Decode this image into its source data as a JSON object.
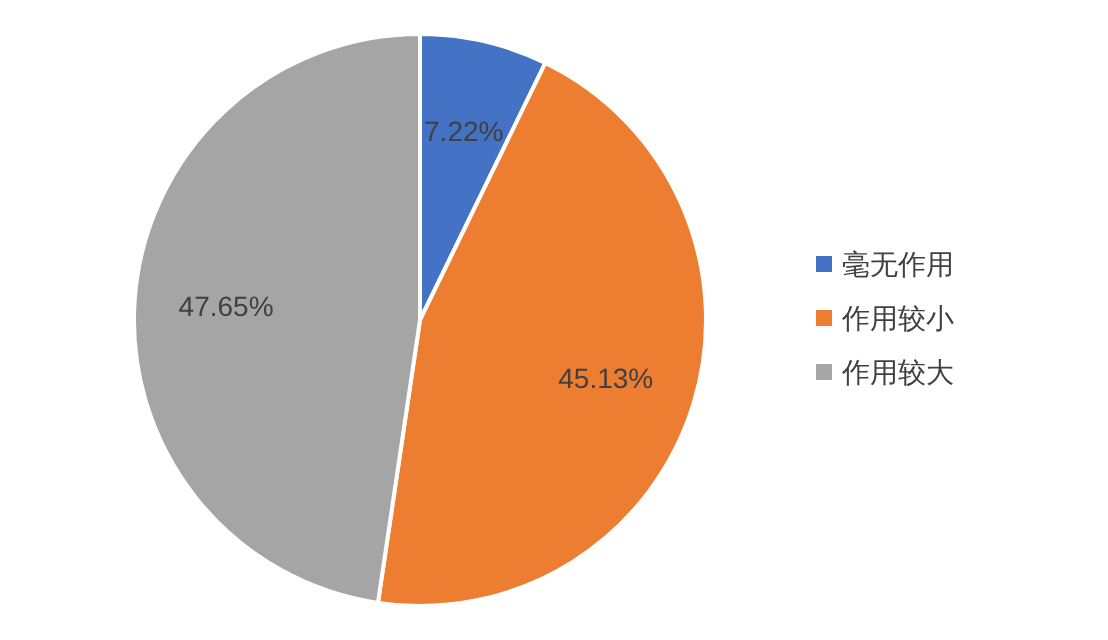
{
  "chart_data": {
    "type": "pie",
    "categories": [
      "毫无作用",
      "作用较小",
      "作用较大"
    ],
    "values": [
      7.22,
      45.13,
      47.65
    ],
    "colors": [
      "#4472c4",
      "#ed7d31",
      "#a5a5a5"
    ],
    "value_labels": [
      "7.22%",
      "45.13%",
      "47.65%"
    ],
    "legend": "right"
  }
}
